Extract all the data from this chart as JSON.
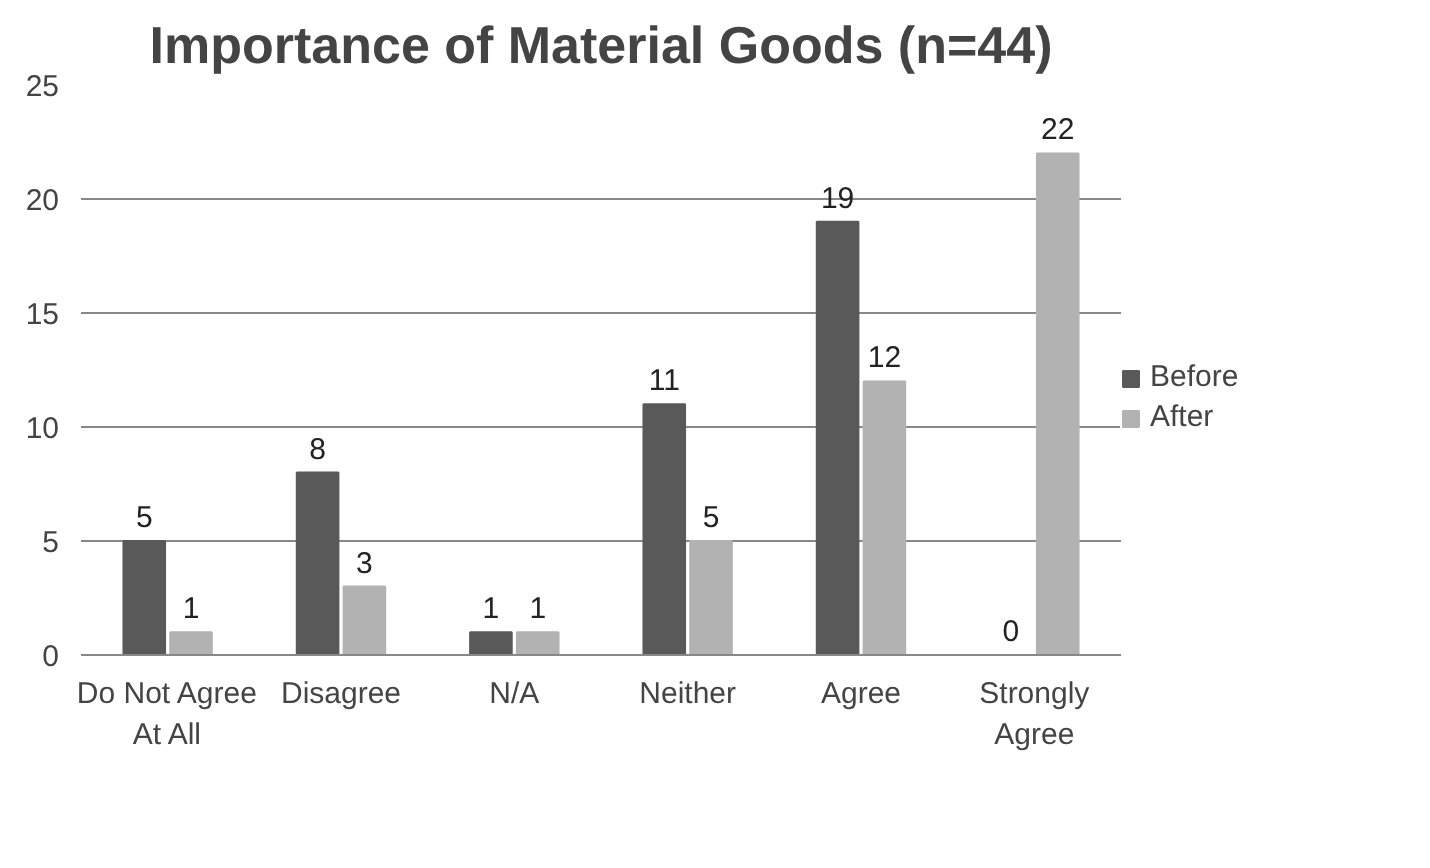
{
  "chart_data": {
    "type": "bar",
    "title": "Importance of Material Goods (n=44)",
    "categories": [
      "Do Not Agree At All",
      "Disagree",
      "N/A",
      "Neither",
      "Agree",
      "Strongly Agree"
    ],
    "series": [
      {
        "name": "Before",
        "color": "#595959",
        "values": [
          5,
          8,
          1,
          11,
          19,
          0
        ]
      },
      {
        "name": "After",
        "color": "#b2b2b2",
        "values": [
          1,
          3,
          1,
          5,
          12,
          22
        ]
      }
    ],
    "ylim": [
      0,
      25
    ],
    "yticks": [
      0,
      5,
      10,
      15,
      20,
      25
    ],
    "grid": "y",
    "legend": "right",
    "data_labels": true
  }
}
